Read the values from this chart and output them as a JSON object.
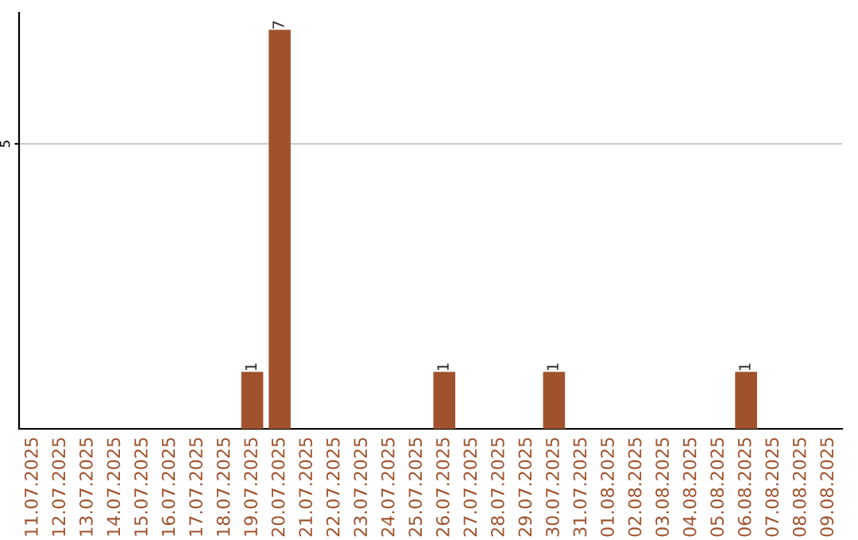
{
  "chart_data": {
    "type": "bar",
    "categories": [
      "11.07.2025",
      "12.07.2025",
      "13.07.2025",
      "14.07.2025",
      "15.07.2025",
      "16.07.2025",
      "17.07.2025",
      "18.07.2025",
      "19.07.2025",
      "20.07.2025",
      "21.07.2025",
      "22.07.2025",
      "23.07.2025",
      "24.07.2025",
      "25.07.2025",
      "26.07.2025",
      "27.07.2025",
      "28.07.2025",
      "29.07.2025",
      "30.07.2025",
      "31.07.2025",
      "01.08.2025",
      "02.08.2025",
      "03.08.2025",
      "04.08.2025",
      "05.08.2025",
      "06.08.2025",
      "07.08.2025",
      "08.08.2025",
      "09.08.2025"
    ],
    "values": [
      0,
      0,
      0,
      0,
      0,
      0,
      0,
      0,
      1,
      7,
      0,
      0,
      0,
      0,
      0,
      1,
      0,
      0,
      0,
      1,
      0,
      0,
      0,
      0,
      0,
      0,
      1,
      0,
      0,
      0
    ],
    "value_labels": [
      null,
      null,
      null,
      null,
      null,
      null,
      null,
      null,
      "1",
      "7",
      null,
      null,
      null,
      null,
      null,
      "1",
      null,
      null,
      null,
      "1",
      null,
      null,
      null,
      null,
      null,
      null,
      "1",
      null,
      null,
      null
    ],
    "color": "#a0522d",
    "ylim": [
      0,
      7.3
    ],
    "yticks": [
      5
    ],
    "grid": "y",
    "legend": false
  }
}
